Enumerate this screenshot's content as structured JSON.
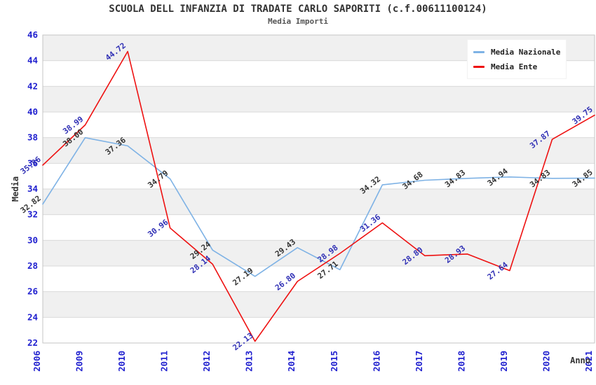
{
  "header": {
    "title": "SCUOLA DELL INFANZIA DI TRADATE CARLO SAPORITI (c.f.00611100124)",
    "subtitle": "Media Importi"
  },
  "chart_data": {
    "type": "line",
    "title": "SCUOLA DELL INFANZIA DI TRADATE CARLO SAPORITI (c.f.00611100124)",
    "subtitle": "Media Importi",
    "xlabel": "Anno",
    "ylabel": "Media",
    "ylim": [
      22,
      46
    ],
    "ytick_step": 2,
    "grid": "horizontal-bands",
    "legend_position": "top-right",
    "categories": [
      "2006",
      "2009",
      "2010",
      "2011",
      "2012",
      "2013",
      "2014",
      "2015",
      "2016",
      "2017",
      "2018",
      "2019",
      "2020",
      "2021"
    ],
    "series": [
      {
        "name": "Media Nazionale",
        "color": "#7eb2e5",
        "label_color": "#333333",
        "values": [
          32.82,
          38.0,
          37.36,
          34.79,
          29.24,
          27.19,
          29.43,
          27.71,
          34.32,
          34.68,
          34.83,
          34.94,
          34.83,
          34.85
        ]
      },
      {
        "name": "Media Ente",
        "color": "#ee1111",
        "label_color": "#3030b5",
        "values": [
          35.86,
          38.99,
          44.72,
          30.96,
          28.14,
          22.13,
          26.8,
          28.98,
          31.36,
          28.8,
          28.93,
          27.64,
          37.87,
          39.75
        ]
      }
    ]
  },
  "colors": {
    "background": "#ffffff",
    "band": "#f0f0f0",
    "gridline": "#dadada",
    "plot_border": "#c4c4c4",
    "tick_text": "#2020cf",
    "axis_title_text": "#333333",
    "title_text": "#333333",
    "subtitle_text": "#555555"
  }
}
